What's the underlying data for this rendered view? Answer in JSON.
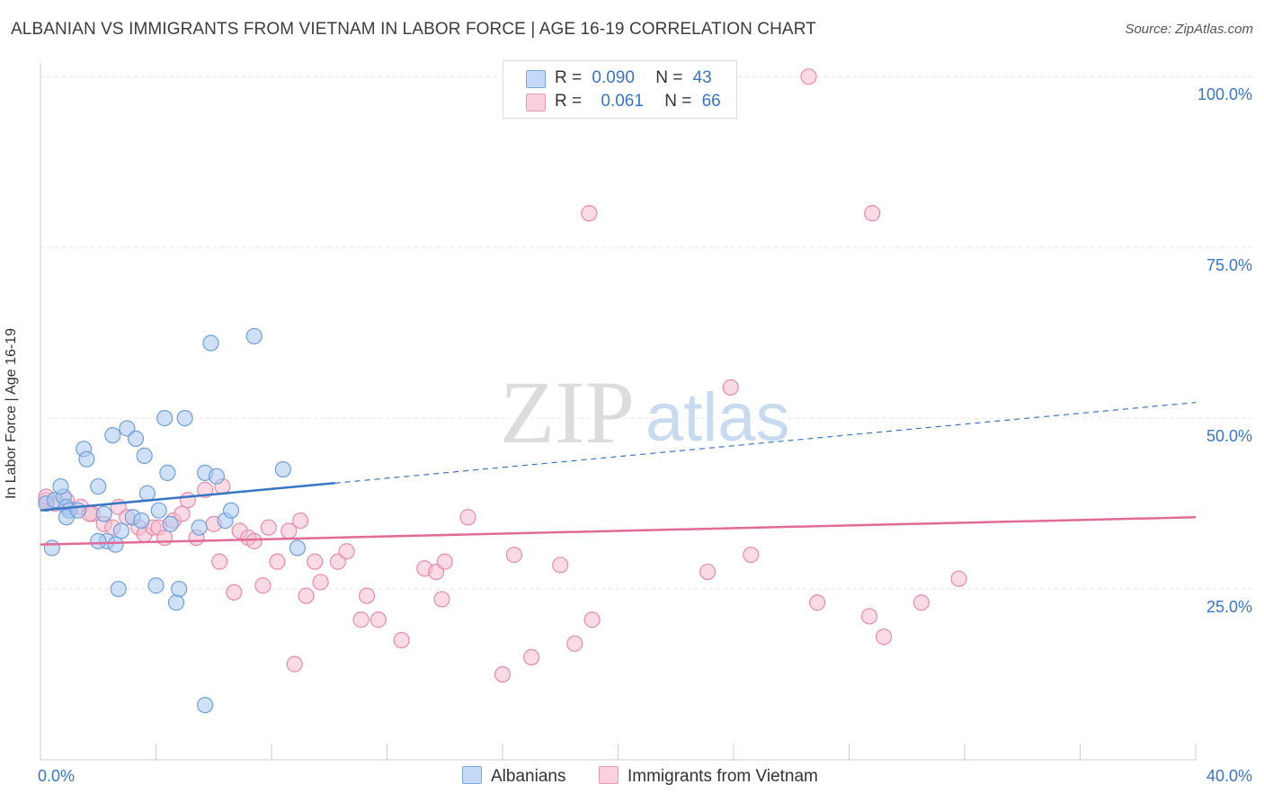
{
  "title": "ALBANIAN VS IMMIGRANTS FROM VIETNAM IN LABOR FORCE | AGE 16-19 CORRELATION CHART",
  "source": "Source: ZipAtlas.com",
  "watermark": {
    "zip": "ZIP",
    "atlas": "atlas"
  },
  "legend": {
    "rows": [
      {
        "r_label": "R =",
        "r_value": "0.090",
        "n_label": "N =",
        "n_value": "43"
      },
      {
        "r_label": "R =",
        "r_value": "0.061",
        "n_label": "N =",
        "n_value": "66"
      }
    ]
  },
  "bottom_legend": [
    "Albanians",
    "Immigrants from Vietnam"
  ],
  "colors": {
    "albanians_fill": "#aac8f0",
    "albanians_stroke": "#6f9fdc",
    "albanians_line": "#3a75c4",
    "vietnam_fill": "#f6bdd0",
    "vietnam_stroke": "#e98aab",
    "vietnam_line": "#e06b96",
    "tick_label": "#3a75c4",
    "grid": "#e6e6e6"
  },
  "chart_data": {
    "type": "scatter",
    "title": "ALBANIAN VS IMMIGRANTS FROM VIETNAM IN LABOR FORCE | AGE 16-19 CORRELATION CHART",
    "xlabel": "",
    "ylabel": "In Labor Force | Age 16-19",
    "xlim": [
      0,
      40
    ],
    "ylim": [
      0,
      102
    ],
    "x_tick_labels": [
      "0.0%",
      "40.0%"
    ],
    "y_tick_labels": [
      "25.0%",
      "50.0%",
      "75.0%",
      "100.0%"
    ],
    "y_ticks": [
      25,
      50,
      75,
      100
    ],
    "series": [
      {
        "name": "Albanians",
        "r": 0.09,
        "n": 43,
        "trend": {
          "x": [
            0,
            10.2
          ],
          "y": [
            36.5,
            40.5
          ],
          "dashed_to": [
            40,
            52.3
          ]
        },
        "points": [
          [
            0.2,
            37.5
          ],
          [
            0.5,
            38.0
          ],
          [
            0.8,
            38.5
          ],
          [
            0.9,
            37.0
          ],
          [
            1.0,
            36.5
          ],
          [
            0.4,
            31.0
          ],
          [
            0.7,
            40.0
          ],
          [
            0.9,
            35.5
          ],
          [
            1.3,
            36.5
          ],
          [
            1.5,
            45.5
          ],
          [
            1.6,
            44.0
          ],
          [
            2.0,
            40.0
          ],
          [
            2.2,
            36.0
          ],
          [
            2.3,
            32.0
          ],
          [
            2.6,
            31.5
          ],
          [
            2.7,
            25.0
          ],
          [
            2.8,
            33.5
          ],
          [
            2.5,
            47.5
          ],
          [
            3.0,
            48.5
          ],
          [
            3.3,
            47.0
          ],
          [
            3.2,
            35.5
          ],
          [
            3.5,
            35.0
          ],
          [
            3.6,
            44.5
          ],
          [
            3.7,
            39.0
          ],
          [
            4.0,
            25.5
          ],
          [
            4.1,
            36.5
          ],
          [
            4.3,
            50.0
          ],
          [
            4.4,
            42.0
          ],
          [
            4.5,
            34.5
          ],
          [
            4.7,
            23.0
          ],
          [
            4.8,
            25.0
          ],
          [
            5.0,
            50.0
          ],
          [
            5.5,
            34.0
          ],
          [
            5.7,
            42.0
          ],
          [
            5.9,
            61.0
          ],
          [
            6.1,
            41.5
          ],
          [
            6.4,
            35.0
          ],
          [
            6.6,
            36.5
          ],
          [
            5.7,
            8.0
          ],
          [
            7.4,
            62.0
          ],
          [
            8.4,
            42.5
          ],
          [
            8.9,
            31.0
          ],
          [
            2.0,
            32.0
          ]
        ]
      },
      {
        "name": "Immigrants from Vietnam",
        "r": 0.061,
        "n": 66,
        "trend": {
          "x": [
            0,
            40
          ],
          "y": [
            31.5,
            35.5
          ]
        },
        "points": [
          [
            0.2,
            38.0
          ],
          [
            0.5,
            37.5
          ],
          [
            0.9,
            38.0
          ],
          [
            1.0,
            36.5
          ],
          [
            1.4,
            37.0
          ],
          [
            1.8,
            36.0
          ],
          [
            2.2,
            34.5
          ],
          [
            2.5,
            34.0
          ],
          [
            2.7,
            37.0
          ],
          [
            3.0,
            35.5
          ],
          [
            3.4,
            34.0
          ],
          [
            3.6,
            33.0
          ],
          [
            3.9,
            34.0
          ],
          [
            4.1,
            34.0
          ],
          [
            4.3,
            32.5
          ],
          [
            4.6,
            35.0
          ],
          [
            4.9,
            36.0
          ],
          [
            5.1,
            38.0
          ],
          [
            5.4,
            32.5
          ],
          [
            5.7,
            39.5
          ],
          [
            6.0,
            34.5
          ],
          [
            6.3,
            40.0
          ],
          [
            6.2,
            29.0
          ],
          [
            6.7,
            24.5
          ],
          [
            6.9,
            33.5
          ],
          [
            7.2,
            32.5
          ],
          [
            7.4,
            32.0
          ],
          [
            7.7,
            25.5
          ],
          [
            7.9,
            34.0
          ],
          [
            8.2,
            29.0
          ],
          [
            8.6,
            33.5
          ],
          [
            9.0,
            35.0
          ],
          [
            9.2,
            24.0
          ],
          [
            9.5,
            29.0
          ],
          [
            9.7,
            26.0
          ],
          [
            10.3,
            29.0
          ],
          [
            10.6,
            30.5
          ],
          [
            11.1,
            20.5
          ],
          [
            11.3,
            24.0
          ],
          [
            11.7,
            20.5
          ],
          [
            12.5,
            17.5
          ],
          [
            13.3,
            28.0
          ],
          [
            13.7,
            27.5
          ],
          [
            14.0,
            29.0
          ],
          [
            13.9,
            23.5
          ],
          [
            14.8,
            35.5
          ],
          [
            16.0,
            12.5
          ],
          [
            16.4,
            30.0
          ],
          [
            17.0,
            15.0
          ],
          [
            18.0,
            28.5
          ],
          [
            18.5,
            17.0
          ],
          [
            19.1,
            20.5
          ],
          [
            19.0,
            80.0
          ],
          [
            23.1,
            27.5
          ],
          [
            23.9,
            54.5
          ],
          [
            24.6,
            30.0
          ],
          [
            26.6,
            100.0
          ],
          [
            26.9,
            23.0
          ],
          [
            28.8,
            80.0
          ],
          [
            28.7,
            21.0
          ],
          [
            29.2,
            18.0
          ],
          [
            30.5,
            23.0
          ],
          [
            31.8,
            26.5
          ],
          [
            8.8,
            14.0
          ],
          [
            1.7,
            36.0
          ],
          [
            0.2,
            38.5
          ]
        ]
      }
    ]
  }
}
